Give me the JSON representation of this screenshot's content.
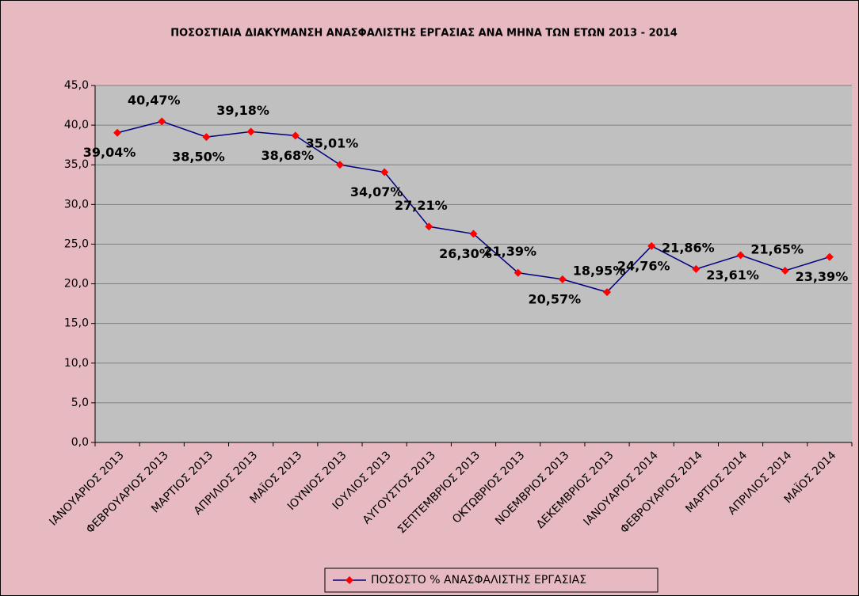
{
  "chart_data": {
    "type": "line",
    "title": "ΠΟΣΟΣΤΙΑΙΑ ΔΙΑΚΥΜΑΝΣΗ ΑΝΑΣΦΑΛΙΣΤΗΣ ΕΡΓΑΣΙΑΣ ΑΝΑ ΜΗΝΑ ΤΩΝ ΕΤΩΝ 2013 - 2014",
    "categories": [
      "ΙΑΝΟΥΑΡΙΟΣ 2013",
      "ΦΕΒΡΟΥΑΡΙΟΣ 2013",
      "ΜΑΡΤΙΟΣ 2013",
      "ΑΠΡΙΛΙΟΣ 2013",
      "ΜΑΪΟΣ 2013",
      "ΙΟΥΝΙΟΣ 2013",
      "ΙΟΥΛΙΟΣ 2013",
      "ΑΥΓΟΥΣΤΟΣ 2013",
      "ΣΕΠΤΕΜΒΡΙΟΣ 2013",
      "ΟΚΤΩΒΡΙΟΣ 2013",
      "ΝΟΕΜΒΡΙΟΣ 2013",
      "ΔΕΚΕΜΒΡΙΟΣ 2013",
      "ΙΑΝΟΥΑΡΙΟΣ 2014",
      "ΦΕΒΡΟΥΑΡΙΟΣ 2014",
      "ΜΑΡΤΙΟΣ 2014",
      "ΑΠΡΙΛΙΟΣ 2014",
      "ΜΑΪΟΣ 2014"
    ],
    "series": [
      {
        "name": "ΠΟΣΟΣΤΟ % ΑΝΑΣΦΑΛΙΣΤΗΣ ΕΡΓΑΣΙΑΣ",
        "color": "#000080",
        "marker_color": "#ff0000",
        "values": [
          39.04,
          40.47,
          38.5,
          39.18,
          38.68,
          35.01,
          34.07,
          27.21,
          26.3,
          21.39,
          20.57,
          18.95,
          24.76,
          21.86,
          23.61,
          21.65,
          23.39
        ],
        "value_labels": [
          "39,04%",
          "40,47%",
          "38,50%",
          "39,18%",
          "38,68%",
          "35,01%",
          "34,07%",
          "27,21%",
          "26,30%",
          "21,39%",
          "20,57%",
          "18,95%",
          "24,76%",
          "21,86%",
          "23,61%",
          "21,65%",
          "23,39%"
        ]
      }
    ],
    "ylim": [
      0,
      45
    ],
    "yticks": [
      {
        "value": 0,
        "label": "0,0"
      },
      {
        "value": 5,
        "label": "5,0"
      },
      {
        "value": 10,
        "label": "10,0"
      },
      {
        "value": 15,
        "label": "15,0"
      },
      {
        "value": 20,
        "label": "20,0"
      },
      {
        "value": 25,
        "label": "25,0"
      },
      {
        "value": 30,
        "label": "30,0"
      },
      {
        "value": 35,
        "label": "35,0"
      },
      {
        "value": 40,
        "label": "40,0"
      },
      {
        "value": 45,
        "label": "45,0"
      }
    ],
    "grid": true,
    "legend": "bottom"
  }
}
